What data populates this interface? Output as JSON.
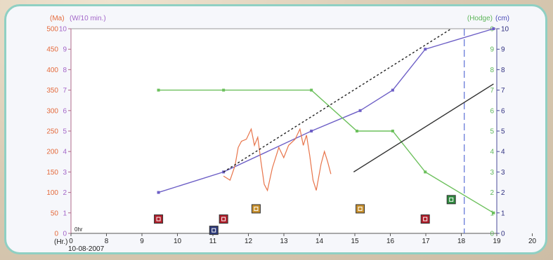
{
  "chart_data": {
    "type": "line",
    "header_labels": {
      "left_outer": "(Ma)",
      "left_inner": "(W/10 min.)",
      "right_inner": "(Hodge)",
      "right_outer": "(cm)"
    },
    "x_unit_label": "(Hr.)",
    "date_label": "10-08-2007",
    "hr_marker": "0hr",
    "xlim": [
      0,
      20
    ],
    "x_ticks": [
      "0",
      "8",
      "9",
      "10",
      "11",
      "12",
      "13",
      "14",
      "15",
      "16",
      "17",
      "18",
      "19",
      "20"
    ],
    "y_left_outer_ticks": [
      "0",
      "50",
      "100",
      "150",
      "200",
      "250",
      "300",
      "350",
      "400",
      "450",
      "500"
    ],
    "y_left_inner_ticks": [
      "0",
      "1",
      "2",
      "3",
      "4",
      "5",
      "6",
      "7",
      "8",
      "9",
      "10"
    ],
    "y_right_inner_ticks": [
      "0",
      "1",
      "2",
      "3",
      "4",
      "5",
      "6",
      "7",
      "8",
      "9",
      "0"
    ],
    "y_right_outer_ticks": [
      "0",
      "1",
      "2",
      "3",
      "4",
      "5",
      "6",
      "7",
      "8",
      "9",
      "10"
    ],
    "series": [
      {
        "key": "purple",
        "color": "#6d5fc6",
        "points": [
          [
            9.6,
            2
          ],
          [
            11.6,
            3
          ],
          [
            14.3,
            5
          ],
          [
            15.8,
            6
          ],
          [
            16.8,
            7
          ],
          [
            17.8,
            9
          ],
          [
            19.9,
            10
          ]
        ]
      },
      {
        "key": "green",
        "color": "#6cc05c",
        "points": [
          [
            9.6,
            7
          ],
          [
            11.6,
            7
          ],
          [
            14.3,
            7
          ],
          [
            15.7,
            5
          ],
          [
            16.8,
            5
          ],
          [
            17.8,
            3
          ],
          [
            19.9,
            1
          ]
        ]
      },
      {
        "key": "orange",
        "color": "#e8744a",
        "points": [
          [
            11.6,
            140
          ],
          [
            11.8,
            130
          ],
          [
            11.95,
            165
          ],
          [
            12.05,
            210
          ],
          [
            12.15,
            225
          ],
          [
            12.3,
            230
          ],
          [
            12.45,
            255
          ],
          [
            12.55,
            215
          ],
          [
            12.65,
            235
          ],
          [
            12.75,
            175
          ],
          [
            12.85,
            120
          ],
          [
            12.95,
            105
          ],
          [
            13.1,
            160
          ],
          [
            13.3,
            210
          ],
          [
            13.45,
            185
          ],
          [
            13.6,
            215
          ],
          [
            13.8,
            230
          ],
          [
            13.95,
            255
          ],
          [
            14.05,
            215
          ],
          [
            14.15,
            240
          ],
          [
            14.25,
            190
          ],
          [
            14.35,
            130
          ],
          [
            14.45,
            105
          ],
          [
            14.6,
            170
          ],
          [
            14.7,
            200
          ],
          [
            14.8,
            175
          ],
          [
            14.9,
            145
          ]
        ]
      },
      {
        "key": "dotted",
        "color": "#222222",
        "dash": true,
        "points": [
          [
            11.6,
            3
          ],
          [
            18.6,
            10
          ]
        ]
      },
      {
        "key": "black",
        "color": "#303030",
        "points": [
          [
            15.6,
            3
          ],
          [
            19.9,
            7.3
          ]
        ]
      }
    ],
    "vertical_line": {
      "x": 19,
      "color": "#5a6fd6"
    },
    "markers": [
      {
        "x": 9.6,
        "y": 0.7,
        "color": "#b01e2a"
      },
      {
        "x": 11.6,
        "y": 0.7,
        "color": "#b01e2a"
      },
      {
        "x": 12.6,
        "y": 1.2,
        "color": "#c8902c"
      },
      {
        "x": 11.3,
        "y": 0.15,
        "color": "#2d3a7a"
      },
      {
        "x": 15.8,
        "y": 1.2,
        "color": "#c8902c"
      },
      {
        "x": 17.8,
        "y": 0.7,
        "color": "#b01e2a"
      },
      {
        "x": 18.6,
        "y": 1.65,
        "color": "#2e8a3e"
      }
    ]
  }
}
